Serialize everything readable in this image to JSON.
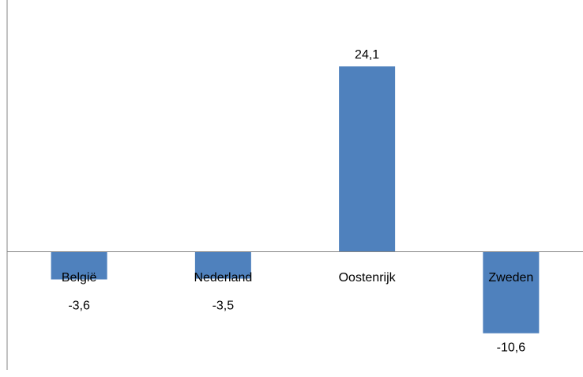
{
  "chart_data": {
    "type": "bar",
    "categories": [
      "België",
      "Nederland",
      "Oostenrijk",
      "Zweden"
    ],
    "values": [
      -3.6,
      -3.5,
      24.1,
      -10.6
    ],
    "data_labels": [
      "-3,6",
      "-3,5",
      "24,1",
      "-10,6"
    ],
    "title": "",
    "xlabel": "",
    "ylabel": "",
    "ylim": [
      -12,
      26
    ],
    "grid": false,
    "legend": "none",
    "bar_color": "#4F81BD",
    "axis_color": "#868686"
  }
}
